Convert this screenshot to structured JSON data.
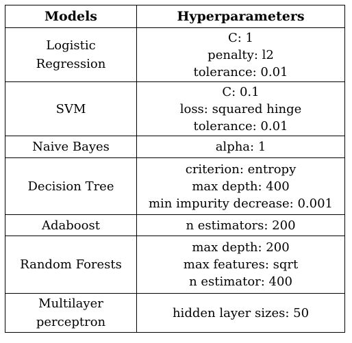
{
  "table": {
    "headers": [
      "Models",
      "Hyperparameters"
    ],
    "rows": [
      {
        "model": [
          "Logistic",
          "Regression"
        ],
        "params": [
          "C: 1",
          "penalty: l2",
          "tolerance: 0.01"
        ]
      },
      {
        "model": [
          "SVM"
        ],
        "params": [
          "C: 0.1",
          "loss: squared hinge",
          "tolerance: 0.01"
        ]
      },
      {
        "model": [
          "Naive Bayes"
        ],
        "params": [
          "alpha: 1"
        ]
      },
      {
        "model": [
          "Decision Tree"
        ],
        "params": [
          "criterion: entropy",
          "max depth: 400",
          "min impurity decrease: 0.001"
        ]
      },
      {
        "model": [
          "Adaboost"
        ],
        "params": [
          "n estimators: 200"
        ]
      },
      {
        "model": [
          "Random Forests"
        ],
        "params": [
          "max depth: 200",
          "max features: sqrt",
          "n estimator: 400"
        ]
      },
      {
        "model": [
          "Multilayer",
          "perceptron"
        ],
        "params": [
          "hidden layer sizes: 50"
        ]
      }
    ]
  }
}
